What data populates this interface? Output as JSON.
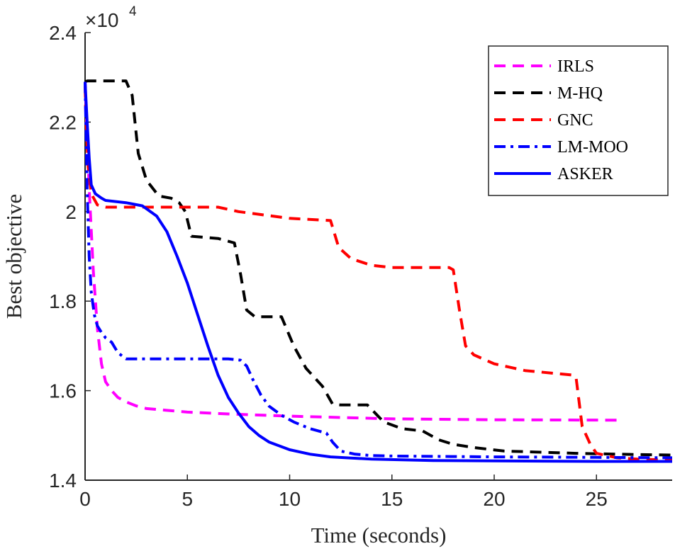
{
  "chart_data": {
    "type": "line",
    "title": "",
    "xlabel": "Time (seconds)",
    "ylabel": "Best objective",
    "y_exponent_base": "×10",
    "y_exponent_power": "4",
    "xlim": [
      0,
      28.7
    ],
    "ylim": [
      1.4,
      2.4
    ],
    "xticks": [
      0,
      5,
      10,
      15,
      20,
      25
    ],
    "xtick_labels": [
      "0",
      "5",
      "10",
      "15",
      "20",
      "25"
    ],
    "yticks": [
      1.4,
      1.6,
      1.8,
      2.0,
      2.2,
      2.4
    ],
    "ytick_labels": [
      "1.4",
      "1.6",
      "1.8",
      "2",
      "2.2",
      "2.4"
    ],
    "legend_position": "top-right",
    "series": [
      {
        "name": "IRLS",
        "color": "#ff00ff",
        "style": "dashed",
        "x": [
          0,
          0.2,
          0.4,
          0.6,
          0.8,
          1.0,
          1.3,
          1.6,
          2.0,
          2.5,
          3.0,
          4.0,
          5.0,
          7.0,
          10.0,
          15.0,
          20.0,
          26.3
        ],
        "y": [
          2.29,
          2.05,
          1.87,
          1.74,
          1.66,
          1.62,
          1.6,
          1.585,
          1.575,
          1.566,
          1.56,
          1.556,
          1.552,
          1.548,
          1.543,
          1.537,
          1.535,
          1.534
        ]
      },
      {
        "name": "M-HQ",
        "color": "#000000",
        "style": "dashed",
        "x": [
          0,
          0.1,
          2.0,
          2.3,
          2.6,
          3.0,
          3.6,
          4.2,
          4.6,
          4.9,
          5.2,
          6.5,
          7.3,
          7.6,
          7.9,
          8.3,
          9.6,
          10.2,
          10.8,
          11.2,
          11.6,
          12.1,
          12.5,
          13.8,
          14.6,
          15.5,
          16.5,
          17.3,
          18.0,
          19.0,
          20.5,
          22.0,
          24.0,
          26.0,
          28.7
        ],
        "y": [
          2.29,
          2.292,
          2.292,
          2.26,
          2.13,
          2.07,
          2.035,
          2.03,
          2.02,
          2.0,
          1.945,
          1.94,
          1.93,
          1.86,
          1.78,
          1.765,
          1.765,
          1.7,
          1.65,
          1.63,
          1.61,
          1.57,
          1.568,
          1.568,
          1.53,
          1.515,
          1.51,
          1.49,
          1.48,
          1.473,
          1.465,
          1.463,
          1.46,
          1.458,
          1.456
        ]
      },
      {
        "name": "GNC",
        "color": "#ff0000",
        "style": "dashed",
        "x": [
          0,
          0.05,
          0.15,
          0.3,
          0.6,
          1.0,
          6.5,
          7.5,
          10.0,
          12.0,
          12.4,
          13.0,
          14.0,
          15.0,
          17.8,
          18.0,
          18.3,
          18.6,
          19.0,
          20.0,
          21.5,
          23.8,
          24.0,
          24.3,
          24.7,
          25.0,
          26.0,
          27.0,
          28.7
        ],
        "y": [
          2.28,
          2.2,
          2.1,
          2.04,
          2.015,
          2.01,
          2.01,
          2.0,
          1.985,
          1.98,
          1.92,
          1.895,
          1.88,
          1.875,
          1.875,
          1.87,
          1.78,
          1.7,
          1.68,
          1.66,
          1.645,
          1.635,
          1.63,
          1.52,
          1.48,
          1.46,
          1.45,
          1.447,
          1.445
        ]
      },
      {
        "name": "LM-MOO",
        "color": "#0000ff",
        "style": "dashdot",
        "x": [
          0,
          0.1,
          0.2,
          0.3,
          0.45,
          0.6,
          0.8,
          1.0,
          1.3,
          1.6,
          2.0,
          3.0,
          5.0,
          7.0,
          7.6,
          7.9,
          8.2,
          8.6,
          9.0,
          9.6,
          10.2,
          11.0,
          11.8,
          12.1,
          12.5,
          13.2,
          14.0,
          15.0,
          20.0,
          25.0,
          28.7
        ],
        "y": [
          2.29,
          2.05,
          1.9,
          1.82,
          1.77,
          1.745,
          1.73,
          1.718,
          1.708,
          1.685,
          1.671,
          1.671,
          1.671,
          1.671,
          1.668,
          1.655,
          1.625,
          1.59,
          1.565,
          1.545,
          1.53,
          1.515,
          1.505,
          1.485,
          1.465,
          1.458,
          1.455,
          1.454,
          1.452,
          1.451,
          1.45
        ]
      },
      {
        "name": "ASKER",
        "color": "#0000ff",
        "style": "solid",
        "x": [
          0,
          0.1,
          0.2,
          0.3,
          0.5,
          0.8,
          1.0,
          2.0,
          2.8,
          3.5,
          4.0,
          4.5,
          5.0,
          5.5,
          6.0,
          6.5,
          7.0,
          7.5,
          8.0,
          8.5,
          9.0,
          10.0,
          11.0,
          12.0,
          14.0,
          17.0,
          20.0,
          25.0,
          28.7
        ],
        "y": [
          2.29,
          2.2,
          2.12,
          2.06,
          2.04,
          2.03,
          2.025,
          2.02,
          2.013,
          1.99,
          1.955,
          1.9,
          1.84,
          1.77,
          1.7,
          1.635,
          1.585,
          1.55,
          1.52,
          1.5,
          1.485,
          1.468,
          1.458,
          1.452,
          1.447,
          1.444,
          1.443,
          1.442,
          1.442
        ]
      }
    ]
  }
}
